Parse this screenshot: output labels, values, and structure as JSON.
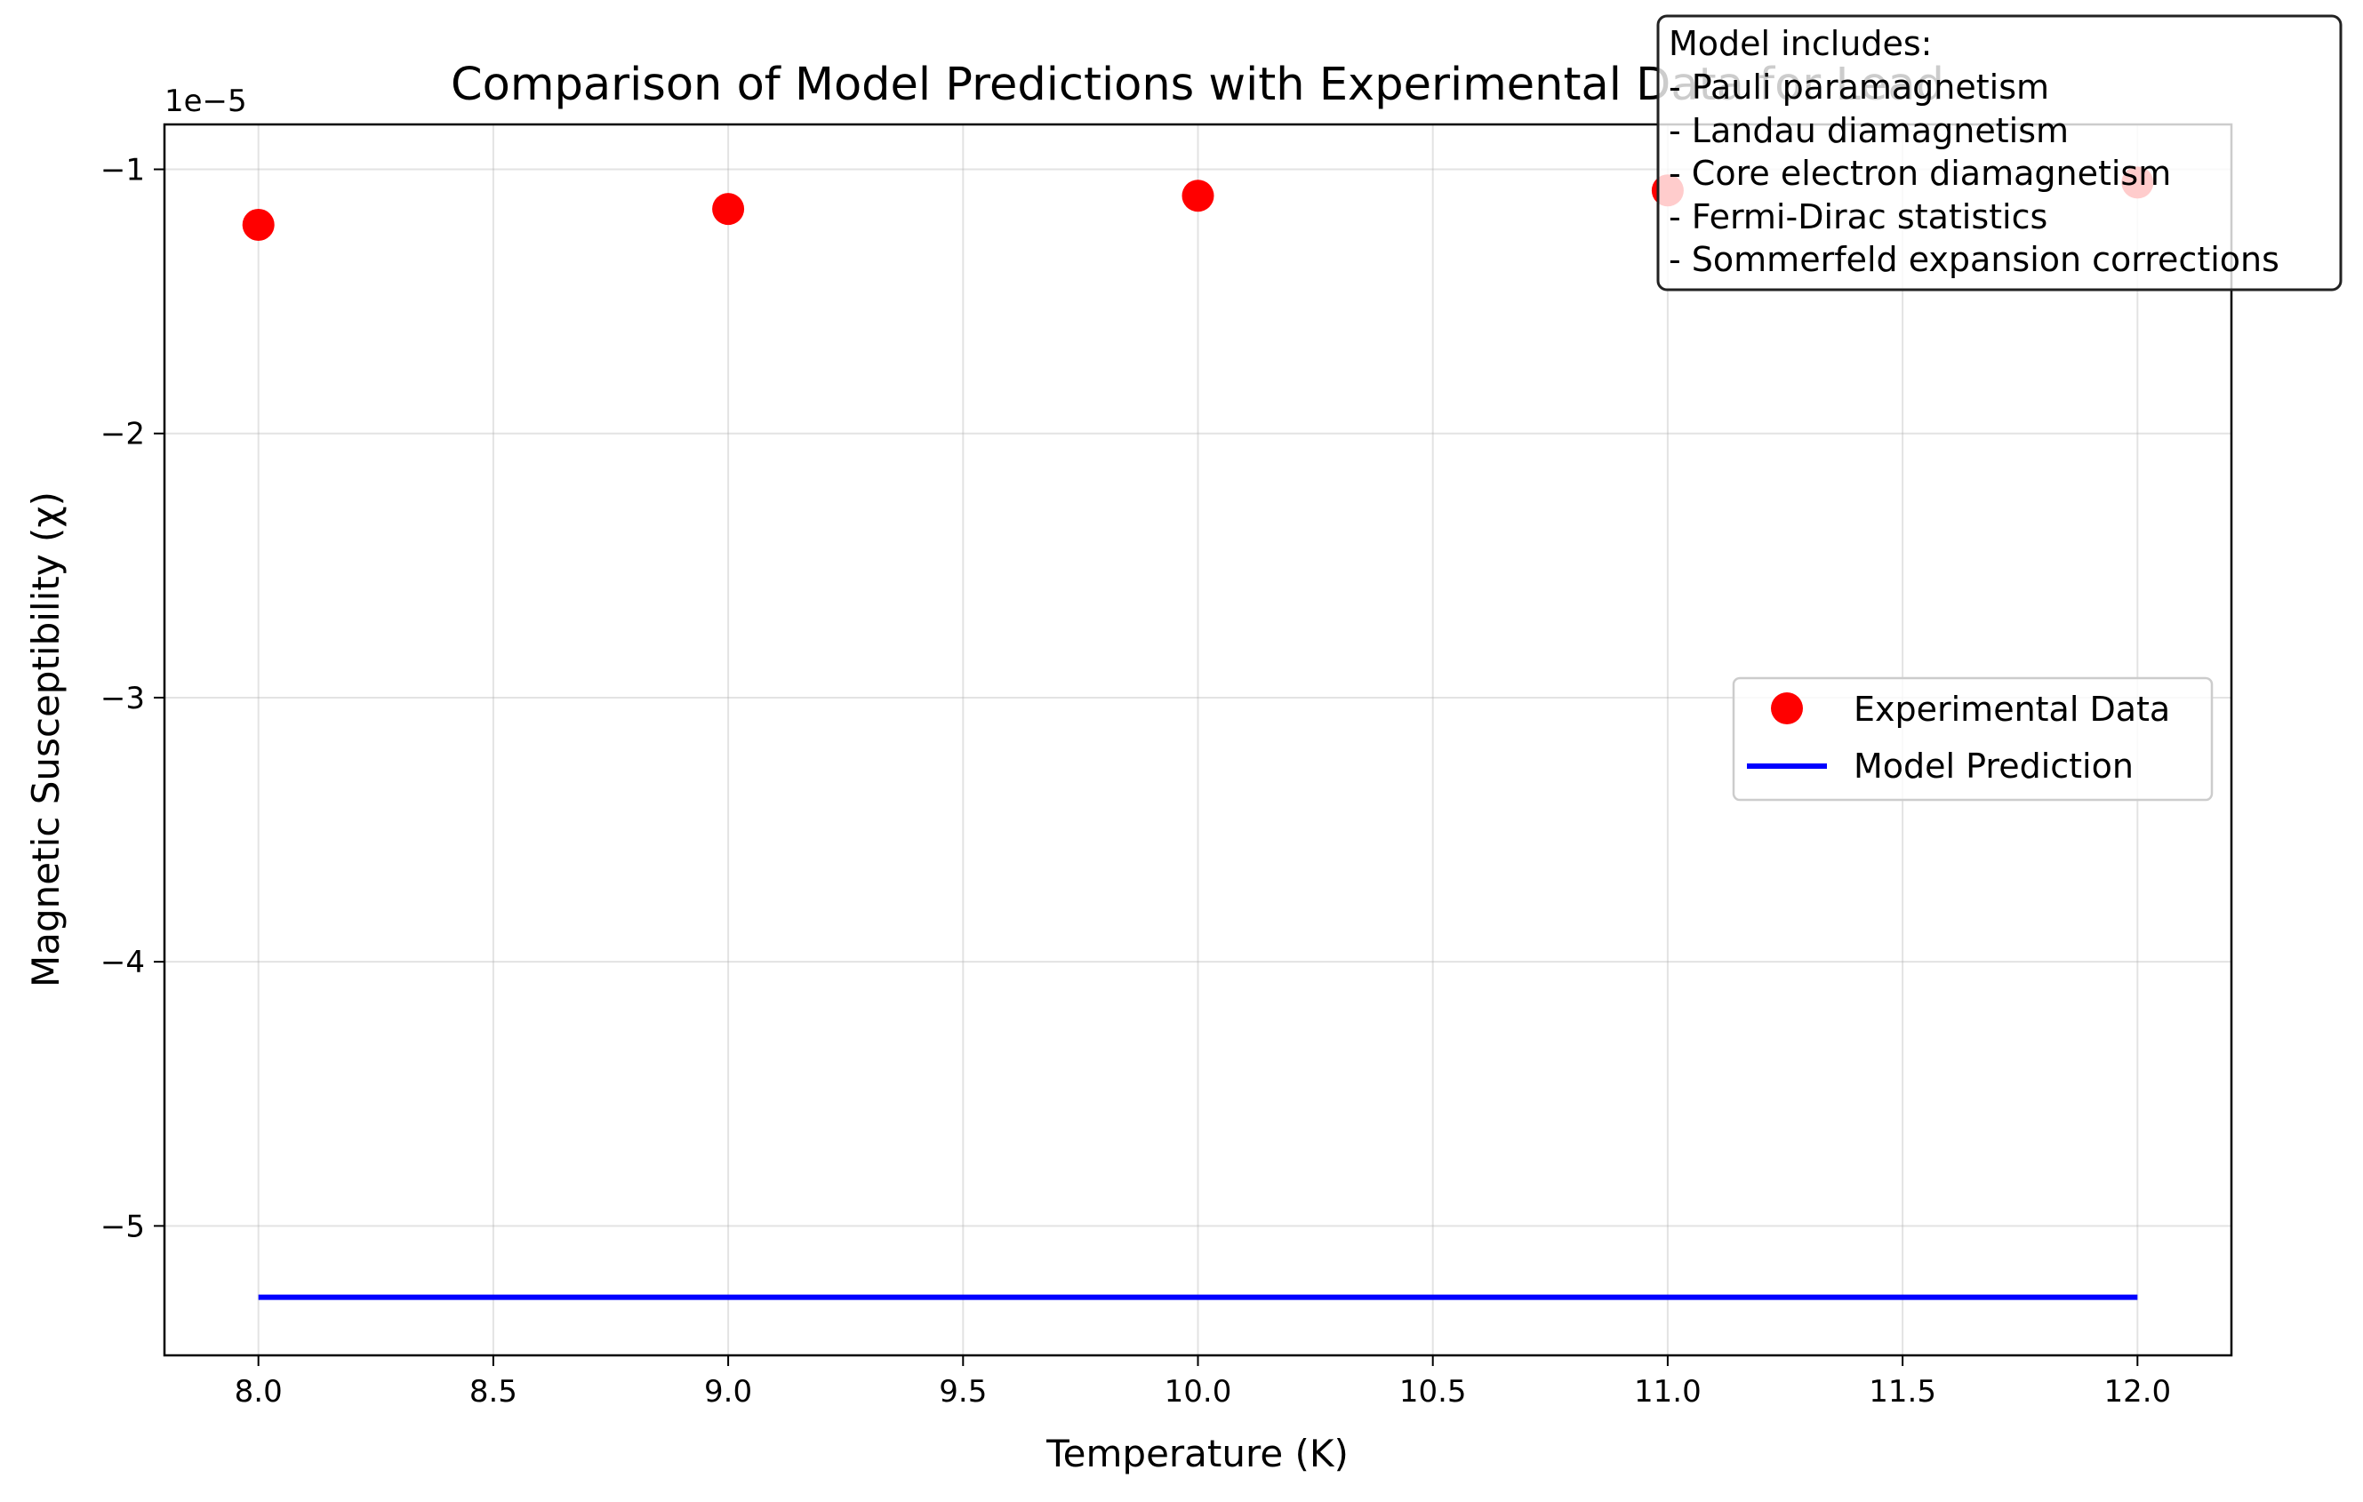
{
  "chart_data": {
    "type": "scatter",
    "title": "Comparison of Model Predictions with Experimental Data for Lead",
    "xlabel": "Temperature (K)",
    "ylabel": "Magnetic Susceptibility (χ)",
    "y_offset_label": "1e−5",
    "xlim": [
      7.8,
      12.2
    ],
    "ylim": [
      -5.49,
      -0.83
    ],
    "x_ticks": [
      8.0,
      8.5,
      9.0,
      9.5,
      10.0,
      10.5,
      11.0,
      11.5,
      12.0
    ],
    "x_tick_labels": [
      "8.0",
      "8.5",
      "9.0",
      "9.5",
      "10.0",
      "10.5",
      "11.0",
      "11.5",
      "12.0"
    ],
    "y_ticks": [
      -1,
      -2,
      -3,
      -4,
      -5
    ],
    "y_tick_labels": [
      "−1",
      "−2",
      "−3",
      "−4",
      "−5"
    ],
    "grid": true,
    "legend_position": "center-right",
    "series": [
      {
        "name": "Experimental Data",
        "kind": "scatter",
        "color": "#ff0000",
        "x": [
          8.0,
          9.0,
          10.0,
          11.0,
          12.0
        ],
        "y": [
          -1.21,
          -1.15,
          -1.1,
          -1.08,
          -1.05
        ]
      },
      {
        "name": "Model Prediction",
        "kind": "line",
        "color": "#0000ff",
        "x": [
          8.0,
          12.0
        ],
        "y": [
          -5.27,
          -5.27
        ]
      }
    ],
    "annotation": {
      "lines": [
        "Model includes:",
        "- Pauli paramagnetism",
        "- Landau diamagnetism",
        "- Core electron diamagnetism",
        "- Fermi-Dirac statistics",
        "- Sommerfeld expansion corrections"
      ],
      "position": "top-right"
    }
  }
}
